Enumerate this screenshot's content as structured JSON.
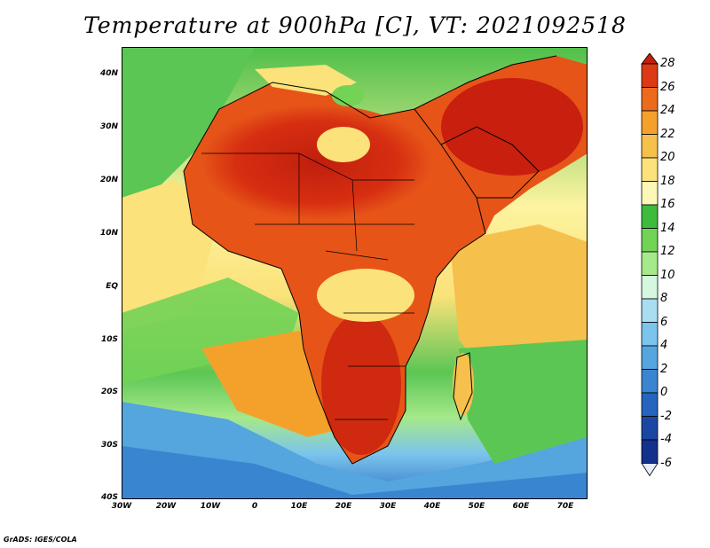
{
  "title": "Temperature at 900hPa [C], VT: 2021092518",
  "credit": "GrADS: IGES/COLA",
  "map": {
    "lat_labels": [
      "40N",
      "30N",
      "20N",
      "10N",
      "EQ",
      "10S",
      "20S",
      "30S",
      "40S"
    ],
    "lon_labels": [
      "30W",
      "20W",
      "10W",
      "0",
      "10E",
      "20E",
      "30E",
      "40E",
      "50E",
      "60E",
      "70E"
    ],
    "lat_range": [
      -40,
      45
    ],
    "lon_range": [
      -30,
      75
    ]
  },
  "colorbar": {
    "labels": [
      "28",
      "26",
      "24",
      "22",
      "20",
      "18",
      "16",
      "14",
      "12",
      "10",
      "8",
      "6",
      "4",
      "2",
      "0",
      "-2",
      "-4",
      "-6"
    ],
    "colors": [
      "#c01f0e",
      "#dc3a14",
      "#ec6a1e",
      "#f4a12c",
      "#f6c04c",
      "#fbe27a",
      "#fdf8b8",
      "#3dbb3d",
      "#72d356",
      "#a6e98a",
      "#d5f6df",
      "#a8ddf2",
      "#7bc4ec",
      "#55a5df",
      "#3a85cf",
      "#2764bd",
      "#1b47a3",
      "#13308a",
      "#0c1d6b"
    ]
  }
}
